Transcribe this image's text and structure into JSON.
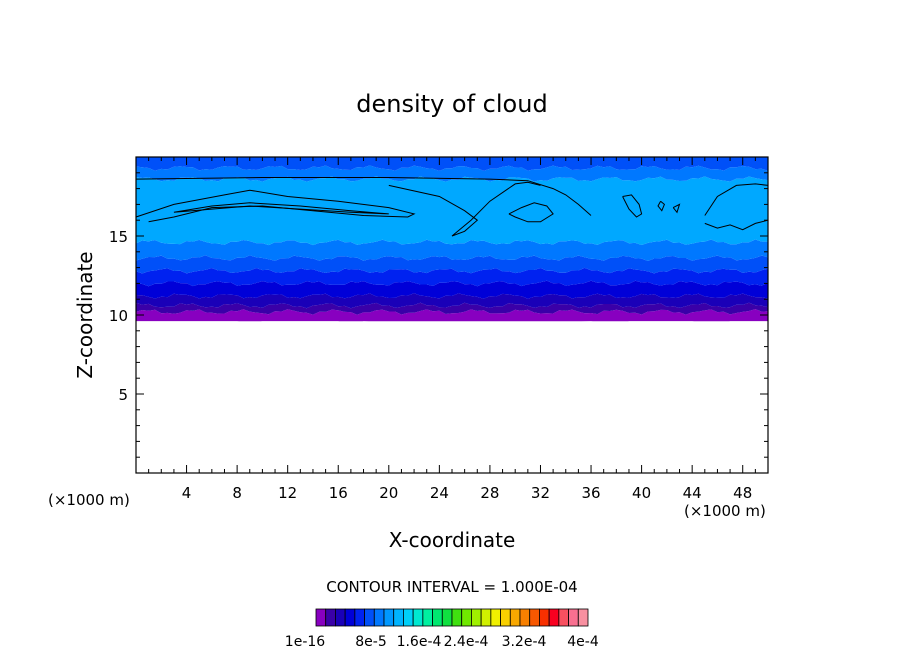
{
  "chart_data": {
    "type": "contour",
    "title": "density of cloud",
    "xlabel": "X-coordinate",
    "ylabel": "Z-coordinate",
    "x_unit_label": "(×1000 m)",
    "z_unit_label": "(×1000 m)",
    "xlim": [
      0,
      50
    ],
    "zlim": [
      0,
      20
    ],
    "x_ticks": [
      4,
      8,
      12,
      16,
      20,
      24,
      28,
      32,
      36,
      40,
      44,
      48
    ],
    "x_tick_labels": [
      "4",
      "8",
      "12",
      "16",
      "20",
      "24",
      "28",
      "32",
      "36",
      "40",
      "44",
      "48"
    ],
    "z_ticks": [
      5,
      10,
      15
    ],
    "z_tick_labels": [
      "5",
      "10",
      "15"
    ],
    "contour_interval_label": "CONTOUR INTERVAL = 1.000E-04",
    "colorbar": {
      "tick_labels": [
        "1e-16",
        "8e-5",
        "1.6e-4",
        "2.4e-4",
        "3.2e-4",
        "4e-4"
      ],
      "colors": [
        "#8800c0",
        "#3a00a8",
        "#1a00b8",
        "#0000d8",
        "#0022f0",
        "#0050f8",
        "#0078ff",
        "#0098ff",
        "#00b4ff",
        "#00d0f8",
        "#00e8d0",
        "#00f0a0",
        "#00e870",
        "#10e040",
        "#40e010",
        "#70e800",
        "#a0f000",
        "#d0f000",
        "#f0f000",
        "#f8d000",
        "#f8a800",
        "#f88000",
        "#f85800",
        "#f83000",
        "#f80020",
        "#f85060",
        "#f87090",
        "#f890a0"
      ]
    },
    "bands": [
      {
        "z_bottom": 9.6,
        "z_top": 10.2,
        "color": "#8800c0"
      },
      {
        "z_bottom": 10.2,
        "z_top": 10.6,
        "color": "#3a00a8"
      },
      {
        "z_bottom": 10.6,
        "z_top": 11.2,
        "color": "#1a00b8"
      },
      {
        "z_bottom": 11.2,
        "z_top": 12.0,
        "color": "#0000d8"
      },
      {
        "z_bottom": 12.0,
        "z_top": 12.8,
        "color": "#0022f0"
      },
      {
        "z_bottom": 12.8,
        "z_top": 13.6,
        "color": "#0050f8"
      },
      {
        "z_bottom": 13.6,
        "z_top": 14.6,
        "color": "#0078ff"
      },
      {
        "z_bottom": 14.6,
        "z_top": 18.6,
        "color": "#00a8ff"
      },
      {
        "z_bottom": 18.6,
        "z_top": 19.3,
        "color": "#0078ff"
      },
      {
        "z_bottom": 19.3,
        "z_top": 20.0,
        "color": "#0050f8"
      }
    ],
    "cloud_base": [
      [
        0,
        9.6
      ],
      [
        4,
        9.6
      ],
      [
        8,
        9.6
      ],
      [
        9,
        9.5
      ],
      [
        10,
        9.6
      ],
      [
        16,
        9.6
      ],
      [
        17,
        9.4
      ],
      [
        18,
        9.6
      ],
      [
        24,
        9.4
      ],
      [
        26,
        9.3
      ],
      [
        27,
        9.1
      ],
      [
        28,
        9.1
      ],
      [
        29,
        9.3
      ],
      [
        31,
        9.5
      ],
      [
        36,
        9.6
      ],
      [
        38,
        9.4
      ],
      [
        39,
        9.6
      ],
      [
        44,
        9.6
      ],
      [
        46,
        9.4
      ],
      [
        47,
        9.6
      ],
      [
        50,
        9.6
      ]
    ],
    "contour_lines": [
      [
        [
          0,
          18.6
        ],
        [
          10,
          18.7
        ],
        [
          20,
          18.7
        ],
        [
          28,
          18.6
        ],
        [
          31,
          18.5
        ],
        [
          33,
          18.0
        ],
        [
          34,
          17.6
        ],
        [
          35,
          17.0
        ],
        [
          36,
          16.3
        ]
      ],
      [
        [
          0,
          16.2
        ],
        [
          3,
          17.0
        ],
        [
          7,
          17.6
        ],
        [
          9,
          17.9
        ],
        [
          12,
          17.5
        ],
        [
          16,
          17.2
        ],
        [
          20,
          16.8
        ],
        [
          22,
          16.4
        ],
        [
          21.5,
          16.2
        ],
        [
          18,
          16.3
        ],
        [
          14,
          16.6
        ],
        [
          10,
          16.9
        ],
        [
          6,
          16.8
        ],
        [
          3,
          16.2
        ],
        [
          1,
          15.9
        ]
      ],
      [
        [
          3,
          16.5
        ],
        [
          6,
          16.9
        ],
        [
          9,
          17.1
        ],
        [
          13,
          16.9
        ],
        [
          17,
          16.6
        ],
        [
          20,
          16.4
        ],
        [
          17,
          16.5
        ],
        [
          13,
          16.7
        ],
        [
          9,
          16.9
        ],
        [
          6,
          16.7
        ],
        [
          3,
          16.5
        ]
      ],
      [
        [
          20,
          18.2
        ],
        [
          24,
          17.5
        ],
        [
          26,
          16.6
        ],
        [
          27,
          16.0
        ],
        [
          26,
          15.3
        ],
        [
          25,
          15.0
        ],
        [
          26.5,
          16.0
        ],
        [
          28,
          17.2
        ],
        [
          30,
          18.3
        ],
        [
          31,
          18.4
        ],
        [
          32,
          18.2
        ]
      ],
      [
        [
          29.5,
          16.4
        ],
        [
          30.5,
          16.8
        ],
        [
          31.5,
          17.1
        ],
        [
          32.5,
          16.9
        ],
        [
          33,
          16.4
        ],
        [
          32,
          15.9
        ],
        [
          31,
          15.9
        ],
        [
          30,
          16.2
        ],
        [
          29.5,
          16.4
        ]
      ],
      [
        [
          38.5,
          17.5
        ],
        [
          39.2,
          17.6
        ],
        [
          39.8,
          17.0
        ],
        [
          40,
          16.4
        ],
        [
          39.6,
          16.2
        ],
        [
          39,
          16.7
        ],
        [
          38.5,
          17.5
        ]
      ],
      [
        [
          41.5,
          17.2
        ],
        [
          41.8,
          17.0
        ],
        [
          41.6,
          16.6
        ],
        [
          41.3,
          16.9
        ],
        [
          41.5,
          17.2
        ]
      ],
      [
        [
          42.5,
          16.8
        ],
        [
          43,
          17.0
        ],
        [
          42.8,
          16.5
        ],
        [
          42.5,
          16.8
        ]
      ],
      [
        [
          45,
          16.3
        ],
        [
          46,
          17.5
        ],
        [
          47.5,
          18.2
        ],
        [
          49,
          18.3
        ],
        [
          50,
          18.2
        ]
      ],
      [
        [
          45,
          15.8
        ],
        [
          46,
          15.5
        ],
        [
          47,
          15.7
        ],
        [
          48,
          15.4
        ],
        [
          49,
          15.8
        ],
        [
          50,
          16.0
        ]
      ]
    ]
  }
}
